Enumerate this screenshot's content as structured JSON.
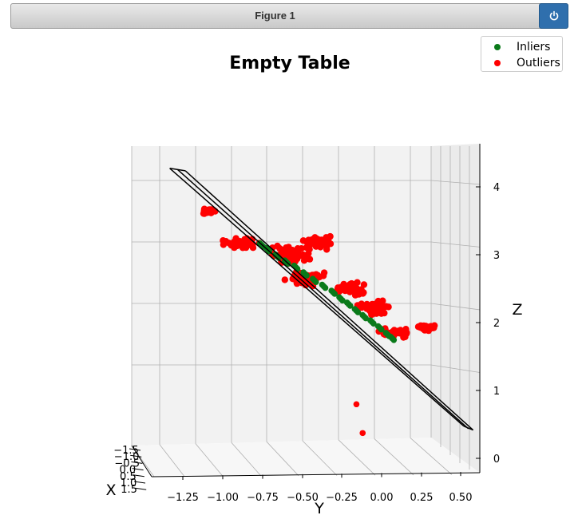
{
  "window": {
    "title": "Figure 1"
  },
  "colors": {
    "inliers": "#0a7a1a",
    "outliers": "#ff0000",
    "plane": "#000000",
    "pane_back": "#f2f2f2",
    "pane_side": "#ebebeb",
    "grid": "#b0b0b0"
  },
  "legend": {
    "items": [
      {
        "label": "Inliers"
      },
      {
        "label": "Outliers"
      }
    ]
  },
  "chart_data": {
    "type": "scatter",
    "projection": "3d",
    "title": "Empty Table",
    "xlabel": "X",
    "ylabel": "Y",
    "zlabel": "Z",
    "x_ticks": [
      "−1.5",
      "−1.0",
      "−0.5",
      "0.0",
      "0.5",
      "1.0",
      "1.5"
    ],
    "y_ticks": [
      "−1.25",
      "−1.00",
      "−0.75",
      "−0.50",
      "−0.25",
      "0.00",
      "0.25",
      "0.50"
    ],
    "z_ticks": [
      "0",
      "1",
      "2",
      "3",
      "4"
    ],
    "y_values": [
      -1.25,
      -1.0,
      -0.75,
      -0.5,
      -0.25,
      0.0,
      0.25,
      0.5
    ],
    "z_values": [
      0,
      1,
      2,
      3,
      4
    ],
    "ylim": [
      -1.35,
      0.62
    ],
    "zlim": [
      -0.1,
      4.5
    ],
    "grid": true,
    "legend_position": "top-right",
    "series": [
      {
        "name": "Inliers",
        "points": [
          [
            -0.78,
            3.12
          ],
          [
            -0.74,
            3.05
          ],
          [
            -0.68,
            2.95
          ],
          [
            -0.62,
            2.86
          ],
          [
            -0.56,
            2.78
          ],
          [
            -0.5,
            2.68
          ],
          [
            -0.44,
            2.58
          ],
          [
            -0.38,
            2.49
          ],
          [
            -0.32,
            2.4
          ],
          [
            -0.27,
            2.3
          ],
          [
            -0.22,
            2.22
          ],
          [
            -0.17,
            2.12
          ],
          [
            -0.12,
            2.03
          ],
          [
            -0.07,
            1.95
          ],
          [
            -0.02,
            1.86
          ],
          [
            0.03,
            1.76
          ],
          [
            0.06,
            1.7
          ]
        ]
      },
      {
        "name": "Outliers",
        "clusters": [
          {
            "center": [
              -1.12,
              3.63
            ],
            "spread": [
              0.09,
              0.05
            ],
            "count": 30
          },
          {
            "center": [
              -0.92,
              3.15
            ],
            "spread": [
              0.14,
              0.1
            ],
            "count": 50
          },
          {
            "center": [
              -0.6,
              2.98
            ],
            "spread": [
              0.17,
              0.15
            ],
            "count": 70
          },
          {
            "center": [
              -0.42,
              3.15
            ],
            "spread": [
              0.12,
              0.13
            ],
            "count": 45
          },
          {
            "center": [
              -0.5,
              2.62
            ],
            "spread": [
              0.15,
              0.15
            ],
            "count": 60
          },
          {
            "center": [
              -0.2,
              2.45
            ],
            "spread": [
              0.13,
              0.14
            ],
            "count": 45
          },
          {
            "center": [
              -0.05,
              2.15
            ],
            "spread": [
              0.14,
              0.15
            ],
            "count": 45
          },
          {
            "center": [
              0.08,
              1.78
            ],
            "spread": [
              0.13,
              0.08
            ],
            "count": 40
          },
          {
            "center": [
              0.27,
              1.85
            ],
            "spread": [
              0.09,
              0.07
            ],
            "count": 25
          }
        ],
        "isolated": [
          [
            -0.17,
            0.73
          ],
          [
            -0.13,
            0.3
          ]
        ]
      }
    ],
    "plane": {
      "lines": [
        [
          [
            -1.37,
            4.28
          ],
          [
            0.52,
            0.38
          ]
        ],
        [
          [
            -1.32,
            4.26
          ],
          [
            0.55,
            0.34
          ]
        ],
        [
          [
            -1.27,
            4.24
          ],
          [
            0.58,
            0.32
          ]
        ]
      ]
    }
  }
}
